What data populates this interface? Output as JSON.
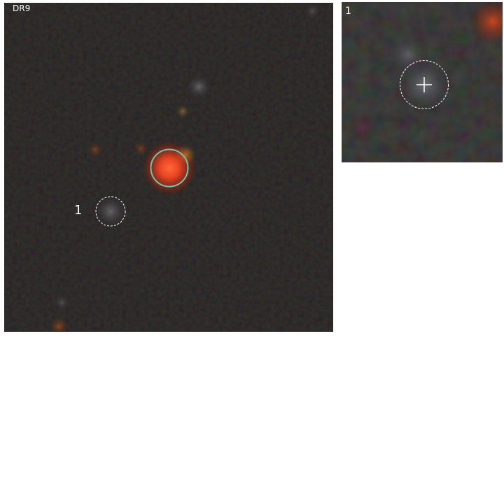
{
  "main_panel": {
    "survey_label": "DR9",
    "candidate_label": "1"
  },
  "inset_panel": {
    "label": "1"
  },
  "colors": {
    "background": "#ffffff",
    "sky": "#1c1a19",
    "target_source": "#ff4a22",
    "target_ring": "#6ec3ad",
    "candidate_ring": "#ffffff",
    "label_text": "#ffffff"
  },
  "icons": {
    "target_marker": "solid-circle-icon",
    "candidate_marker": "dashed-circle-icon",
    "crosshair": "crosshair-icon"
  }
}
